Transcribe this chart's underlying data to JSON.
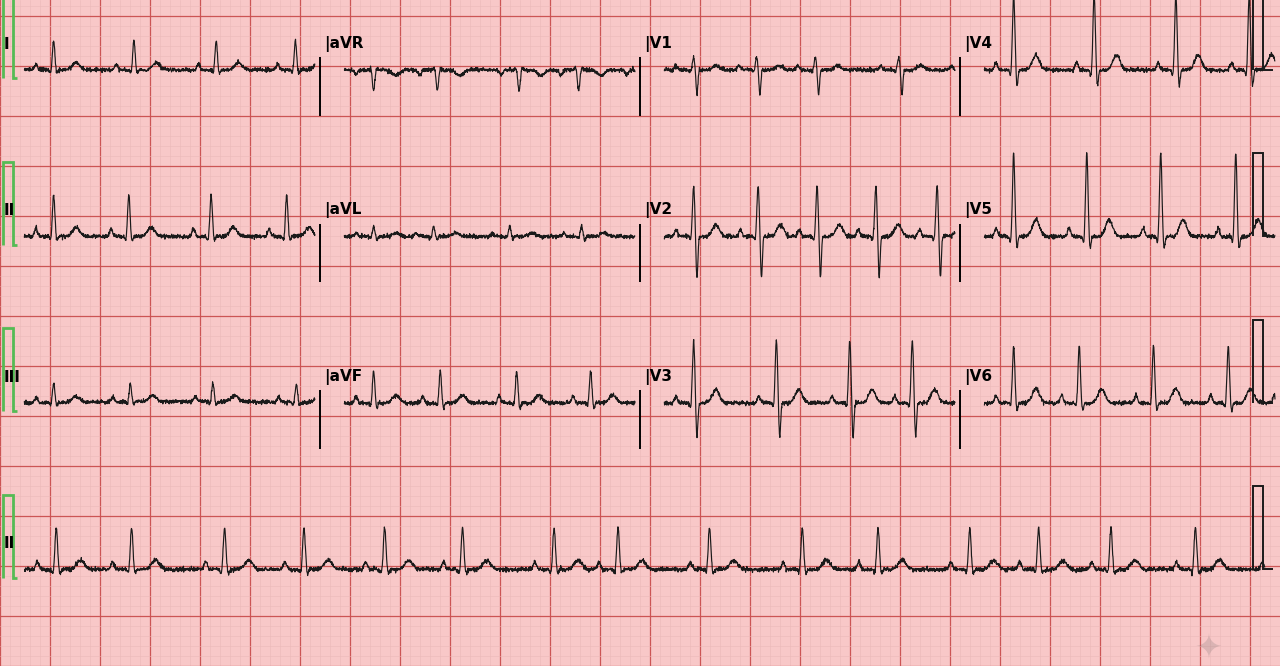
{
  "bg_color": "#f8c8c8",
  "grid_minor_color": "#ebb8b8",
  "grid_major_color": "#cc5555",
  "ecg_color": "#1a1a1a",
  "cal_green": "#55bb55",
  "ecg_lw": 0.85,
  "grid_minor_lw": 0.4,
  "grid_major_lw": 0.9,
  "fig_w": 12.8,
  "fig_h": 6.66,
  "minor_step": 0.1,
  "major_step": 0.5,
  "row1_labels": [
    "I",
    "aVR",
    "V1",
    "V4"
  ],
  "row2_labels": [
    "II",
    "aVL",
    "V2",
    "V5"
  ],
  "row3_labels": [
    "III",
    "aVF",
    "V3",
    "V6"
  ],
  "row4_label": "II",
  "label_fontsize": 11
}
